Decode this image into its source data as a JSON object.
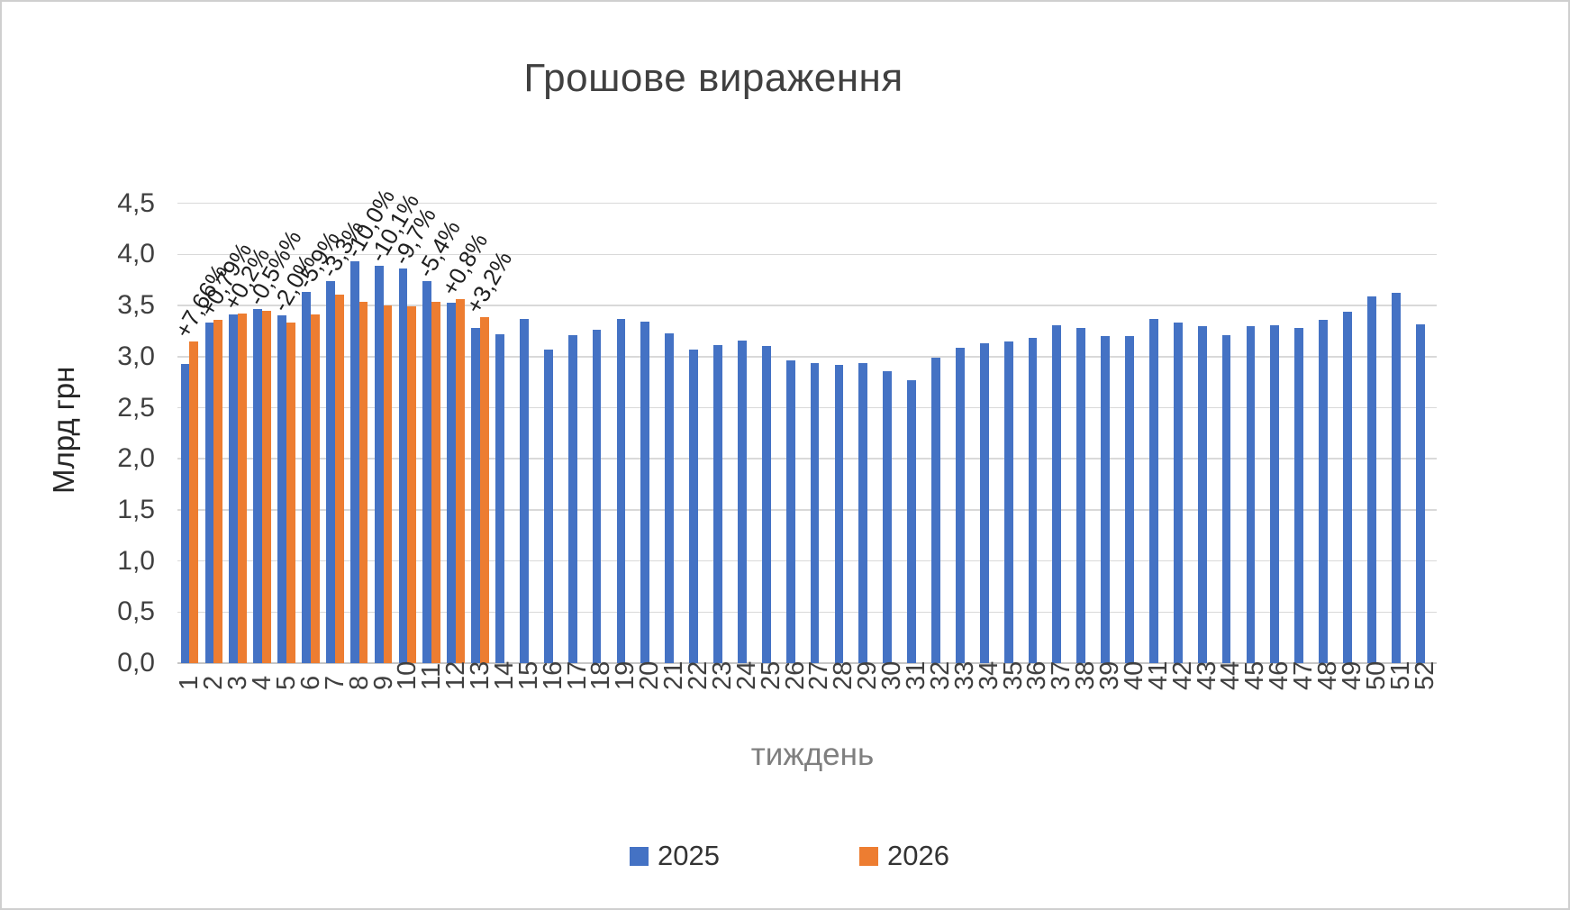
{
  "title": "Грошове вираження",
  "y_axis": {
    "title": "Млрд грн",
    "ticks": [
      {
        "v": 4.5,
        "label": "4,5"
      },
      {
        "v": 4.0,
        "label": "4,0"
      },
      {
        "v": 3.5,
        "label": "3,5"
      },
      {
        "v": 3.0,
        "label": "3,0"
      },
      {
        "v": 2.5,
        "label": "2,5"
      },
      {
        "v": 2.0,
        "label": "2,0"
      },
      {
        "v": 1.5,
        "label": "1,5"
      },
      {
        "v": 1.0,
        "label": "1,0"
      },
      {
        "v": 0.5,
        "label": "0,5"
      },
      {
        "v": 0.0,
        "label": "0,0"
      }
    ]
  },
  "x_axis": {
    "title": "тиждень"
  },
  "legend": [
    {
      "label": "2025",
      "color": "#4472C4"
    },
    {
      "label": "2026",
      "color": "#ED7D31"
    }
  ],
  "chart_data": {
    "type": "bar",
    "title": "Грошове вираження",
    "xlabel": "тиждень",
    "ylabel": "Млрд грн",
    "ylim": [
      0,
      4.5
    ],
    "y_tick_step": 0.5,
    "grid": true,
    "legend_position": "bottom",
    "categories": [
      1,
      2,
      3,
      4,
      5,
      6,
      7,
      8,
      9,
      10,
      11,
      12,
      13,
      14,
      15,
      16,
      17,
      18,
      19,
      20,
      21,
      22,
      23,
      24,
      25,
      26,
      27,
      28,
      29,
      30,
      31,
      32,
      33,
      34,
      35,
      36,
      37,
      38,
      39,
      40,
      41,
      42,
      43,
      44,
      45,
      46,
      47,
      48,
      49,
      50,
      51,
      52
    ],
    "series": [
      {
        "name": "2025",
        "color": "#4472C4",
        "values": [
          2.93,
          3.33,
          3.41,
          3.47,
          3.4,
          3.63,
          3.74,
          3.93,
          3.89,
          3.86,
          3.74,
          3.53,
          3.28,
          3.22,
          3.37,
          3.07,
          3.21,
          3.26,
          3.37,
          3.34,
          3.23,
          3.07,
          3.11,
          3.16,
          3.1,
          2.96,
          2.94,
          2.92,
          2.94,
          2.86,
          2.77,
          2.99,
          3.09,
          3.13,
          3.15,
          3.18,
          3.31,
          3.28,
          3.2,
          3.2,
          3.37,
          3.33,
          3.3,
          3.21,
          3.3,
          3.31,
          3.28,
          3.36,
          3.44,
          3.59,
          3.62,
          3.32
        ]
      },
      {
        "name": "2026",
        "color": "#ED7D31",
        "values": [
          3.15,
          3.36,
          3.42,
          3.45,
          3.33,
          3.41,
          3.61,
          3.54,
          3.5,
          3.49,
          3.54,
          3.56,
          3.39
        ]
      }
    ],
    "annotations": [
      {
        "category": 1,
        "text": "+7,66%"
      },
      {
        "category": 2,
        "text": "+0,79%"
      },
      {
        "category": 3,
        "text": "+0,2%"
      },
      {
        "category": 4,
        "text": "-0,5%%"
      },
      {
        "category": 5,
        "text": "-2,0%"
      },
      {
        "category": 6,
        "text": "-5,9%"
      },
      {
        "category": 7,
        "text": "-3,3%"
      },
      {
        "category": 8,
        "text": "-10,0%"
      },
      {
        "category": 9,
        "text": "-10,1%"
      },
      {
        "category": 10,
        "text": "-9,7%"
      },
      {
        "category": 11,
        "text": "-5,4%"
      },
      {
        "category": 12,
        "text": "+0,8%"
      },
      {
        "category": 13,
        "text": "+3,2%"
      }
    ]
  }
}
